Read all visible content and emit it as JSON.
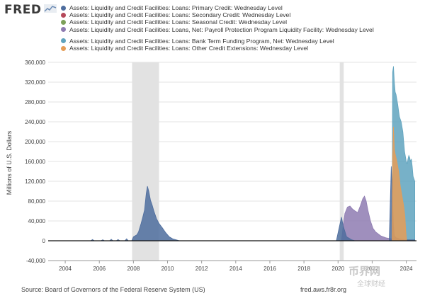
{
  "header": {
    "logo_text": "FRED",
    "logo_icon": "chart-line-icon"
  },
  "chart_data": {
    "type": "area",
    "title": "",
    "xlabel": "",
    "ylabel": "Millions of U.S. Dollars",
    "ylim": [
      -40000,
      360000
    ],
    "yticks": [
      -40000,
      0,
      40000,
      80000,
      120000,
      160000,
      200000,
      240000,
      280000,
      320000,
      360000
    ],
    "ytick_labels": [
      "-40,000",
      "0",
      "40,000",
      "80,000",
      "120,000",
      "160,000",
      "200,000",
      "240,000",
      "280,000",
      "320,000",
      "360,000"
    ],
    "xlim": [
      2003.0,
      2024.6
    ],
    "xticks": [
      2004,
      2006,
      2008,
      2010,
      2012,
      2014,
      2016,
      2018,
      2020,
      2022,
      2024
    ],
    "xtick_labels": [
      "2004",
      "2006",
      "2008",
      "2010",
      "2012",
      "2014",
      "2016",
      "2018",
      "2020",
      "2022",
      "2024"
    ],
    "grid": true,
    "legend_position": "top",
    "recession_shading": [
      [
        2007.92,
        2009.5
      ],
      [
        2020.1,
        2020.33
      ]
    ],
    "series": [
      {
        "name": "Assets: Liquidity and Credit Facilities: Loans: Primary Credit: Wednesday Level",
        "color": "#4e6d9e",
        "x": [
          2003.0,
          2005.5,
          2005.6,
          2005.7,
          2006.1,
          2006.2,
          2006.3,
          2006.6,
          2006.7,
          2006.8,
          2007.0,
          2007.1,
          2007.2,
          2007.5,
          2007.6,
          2007.7,
          2007.9,
          2008.0,
          2008.2,
          2008.3,
          2008.45,
          2008.55,
          2008.65,
          2008.75,
          2008.82,
          2008.9,
          2009.0,
          2009.1,
          2009.2,
          2009.35,
          2009.5,
          2009.7,
          2009.9,
          2010.1,
          2010.3,
          2010.5,
          2010.7,
          2019.9,
          2020.15,
          2020.2,
          2020.3,
          2020.5,
          2020.8,
          2021.0,
          2022.0,
          2023.0,
          2023.12,
          2023.2,
          2023.25,
          2023.3,
          2023.4,
          2023.5,
          2023.7,
          2024.0,
          2024.2,
          2024.5
        ],
        "values": [
          0,
          0,
          2500,
          0,
          0,
          2000,
          0,
          0,
          3000,
          0,
          0,
          2500,
          0,
          0,
          4000,
          0,
          0,
          8000,
          12000,
          18000,
          35000,
          48000,
          62000,
          95000,
          110000,
          100000,
          82000,
          72000,
          60000,
          45000,
          35000,
          26000,
          16000,
          8000,
          4000,
          2000,
          0,
          0,
          40000,
          48000,
          30000,
          8000,
          2000,
          0,
          0,
          0,
          150000,
          80000,
          30000,
          10000,
          6000,
          5000,
          3000,
          2000,
          2000,
          2000
        ]
      },
      {
        "name": "Assets: Liquidity and Credit Facilities: Loans: Secondary Credit: Wednesday Level",
        "color": "#b5485a",
        "x": [
          2003.0,
          2024.5
        ],
        "values": [
          0,
          0
        ]
      },
      {
        "name": "Assets: Liquidity and Credit Facilities: Loans: Seasonal Credit: Wednesday Level",
        "color": "#7da05a",
        "x": [
          2003.0,
          2024.5
        ],
        "values": [
          0,
          0
        ]
      },
      {
        "name": "Assets: Liquidity and Credit Facilities: Loans, Net: Payroll Protection Program Liquidity Facility: Wednesday Level",
        "color": "#8e7bb1",
        "x": [
          2020.2,
          2020.3,
          2020.4,
          2020.55,
          2020.7,
          2020.85,
          2021.0,
          2021.15,
          2021.3,
          2021.45,
          2021.55,
          2021.65,
          2021.75,
          2021.9,
          2022.05,
          2022.2,
          2022.35,
          2022.5,
          2022.65,
          2022.8,
          2022.95,
          2023.1,
          2023.2,
          2023.4,
          2023.6,
          2023.8,
          2024.0,
          2024.2,
          2024.4
        ],
        "values": [
          0,
          30000,
          55000,
          68000,
          70000,
          64000,
          60000,
          57000,
          70000,
          85000,
          90000,
          80000,
          62000,
          40000,
          25000,
          18000,
          14000,
          10000,
          8000,
          6000,
          5000,
          4000,
          3500,
          3000,
          2500,
          2000,
          1500,
          1000,
          1000
        ]
      },
      {
        "name": "Assets: Liquidity and Credit Facilities: Loans: Bank Term Funding Program, Net: Wednesday Level",
        "color": "#5fa3be",
        "x": [
          2023.17,
          2023.2,
          2023.25,
          2023.3,
          2023.35,
          2023.4,
          2023.45,
          2023.5,
          2023.55,
          2023.6,
          2023.7,
          2023.8,
          2023.9,
          2024.0,
          2024.05,
          2024.1,
          2024.15,
          2024.2,
          2024.25,
          2024.3,
          2024.35,
          2024.4,
          2024.45,
          2024.5
        ],
        "values": [
          0,
          340000,
          352000,
          320000,
          300000,
          295000,
          285000,
          275000,
          262000,
          250000,
          240000,
          220000,
          180000,
          160000,
          155000,
          165000,
          172000,
          168000,
          160000,
          165000,
          150000,
          130000,
          125000,
          120000
        ]
      },
      {
        "name": "Assets: Liquidity and Credit Facilities: Loans: Other Credit Extensions: Wednesday Level",
        "color": "#e59d57",
        "x": [
          2023.17,
          2023.2,
          2023.25,
          2023.3,
          2023.35,
          2023.45,
          2023.55,
          2023.65,
          2023.75,
          2023.85,
          2023.92,
          2023.97,
          2024.02
        ],
        "values": [
          0,
          170000,
          230000,
          185000,
          175000,
          160000,
          140000,
          110000,
          90000,
          70000,
          50000,
          20000,
          0
        ]
      }
    ]
  },
  "footer": {
    "source": "Source: Board of Governors of the Federal Reserve System (US)",
    "site": "fred.aws.fr8r.org"
  },
  "watermark": {
    "main": "币界网",
    "sub": "全球财经"
  }
}
